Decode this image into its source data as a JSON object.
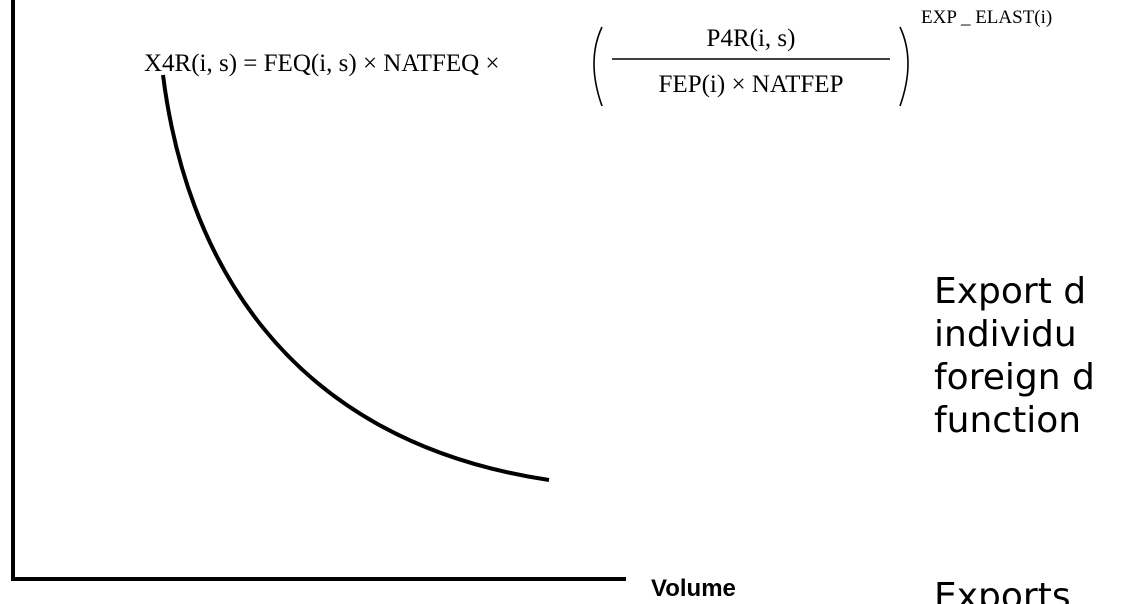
{
  "equation": {
    "lhs": "X4R(i, s) = FEQ(i, s) × NATFEQ ×",
    "numerator": "P4R(i, s)",
    "denominator": "FEP(i) × NATFEP",
    "exponent": "EXP _ ELAST(i)"
  },
  "axes": {
    "x_label": "Volume"
  },
  "text": {
    "line1": "Export d",
    "line2": "individu",
    "line3": "foreign d",
    "line4": "function",
    "line5": "Exports"
  }
}
